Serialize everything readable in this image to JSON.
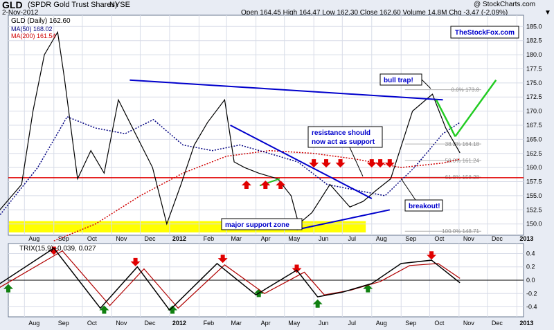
{
  "header": {
    "ticker": "GLD",
    "name": "(SPDR Gold Trust Shares)",
    "exchange": "NYSE",
    "date": "2-Nov-2012",
    "stats": "Open 164.45  High 164.47  Low 162.30  Close 162.60  Volume 14.8M  Chg -3.47 (-2.09%)",
    "watermark": "@ StockCharts.com",
    "down_arrow": "▼"
  },
  "chart_data": [
    {
      "type": "line",
      "title": "GLD (Daily) 162.60",
      "series": [
        {
          "name": "GLD (Daily) 162.60",
          "color": "#000000",
          "x": [
            "2011-07-01",
            "2011-07-29",
            "2011-08-10",
            "2011-08-22",
            "2011-09-05",
            "2011-09-12",
            "2011-09-26",
            "2011-10-10",
            "2011-10-24",
            "2011-11-08",
            "2011-11-20",
            "2011-12-14",
            "2011-12-29",
            "2012-01-13",
            "2012-01-27",
            "2012-02-10",
            "2012-02-28",
            "2012-03-09",
            "2012-03-20",
            "2012-04-04",
            "2012-04-24",
            "2012-05-08",
            "2012-05-16",
            "2012-05-30",
            "2012-06-18",
            "2012-07-09",
            "2012-07-23",
            "2012-08-06",
            "2012-08-21",
            "2012-09-13",
            "2012-10-04",
            "2012-10-18",
            "2012-11-02"
          ],
          "y": [
            151.5,
            157,
            170,
            180,
            184,
            176,
            158,
            163,
            159,
            172,
            168,
            160,
            150,
            157,
            164,
            168,
            172,
            161,
            160,
            159,
            158,
            155,
            150,
            152,
            157,
            153,
            154,
            156,
            158,
            170,
            173,
            167,
            162.6
          ]
        },
        {
          "name": "MA(50) 168.02",
          "color": "#000080",
          "x": [
            "2011-07-01",
            "2011-08-15",
            "2011-09-15",
            "2011-10-15",
            "2011-11-15",
            "2011-12-15",
            "2012-01-15",
            "2012-02-15",
            "2012-03-15",
            "2012-04-15",
            "2012-05-15",
            "2012-06-15",
            "2012-07-15",
            "2012-08-15",
            "2012-09-15",
            "2012-10-15",
            "2012-11-02"
          ],
          "y": [
            150.5,
            160,
            169,
            167,
            166,
            168.5,
            164,
            163,
            164,
            162.5,
            161,
            157,
            156,
            155,
            160,
            166,
            168
          ]
        },
        {
          "name": "MA(200) 161.54",
          "color": "#d00000",
          "x": [
            "2011-09-01",
            "2011-10-15",
            "2011-12-01",
            "2012-01-15",
            "2012-03-01",
            "2012-04-15",
            "2012-06-01",
            "2012-07-15",
            "2012-09-01",
            "2012-10-15",
            "2012-11-02"
          ],
          "y": [
            147,
            150,
            155,
            159,
            162,
            163,
            162.5,
            161.5,
            160,
            160.8,
            161.5
          ]
        }
      ],
      "ylim": [
        148,
        187
      ],
      "yticks": [
        "150.0",
        "152.5",
        "155.0",
        "157.5",
        "160.0",
        "162.5",
        "165.0",
        "167.5",
        "170.0",
        "172.5",
        "175.0",
        "177.5",
        "180.0",
        "182.5",
        "185.0"
      ],
      "xticks": [
        "Aug",
        "Sep",
        "Oct",
        "Nov",
        "Dec",
        "2012",
        "Feb",
        "Mar",
        "Apr",
        "May",
        "Jun",
        "Jul",
        "Aug",
        "Sep",
        "Oct",
        "Nov",
        "Dec",
        "2013"
      ],
      "fib_labels": [
        "0.0% 173.8",
        "38.2% 164.18",
        "50.0% 161.24",
        "61.8% 158.28",
        "100.0% 148.71"
      ],
      "annotations": [
        "bull trap!",
        "resistance should now act as support",
        "breakout!",
        "major support zone"
      ],
      "brand": "TheStockFox.com",
      "support_zone": [
        148.5,
        150.5
      ],
      "horizontal_line": 158.2
    },
    {
      "type": "line",
      "title": "TRIX(15,9) -0.039, 0.027",
      "series": [
        {
          "name": "TRIX(15,9)",
          "color": "#000000",
          "x": [
            "2011-07-01",
            "2011-09-01",
            "2011-10-20",
            "2011-11-28",
            "2012-01-01",
            "2012-02-20",
            "2012-04-01",
            "2012-05-14",
            "2012-06-05",
            "2012-07-01",
            "2012-08-01",
            "2012-09-01",
            "2012-10-03",
            "2012-11-02"
          ],
          "y": [
            -0.1,
            0.48,
            -0.42,
            0.2,
            -0.45,
            0.25,
            -0.22,
            0.15,
            -0.25,
            -0.18,
            -0.05,
            0.25,
            0.3,
            -0.039
          ]
        },
        {
          "name": "signal",
          "color": "#b00000",
          "x": [
            "2011-07-01",
            "2011-09-10",
            "2011-10-30",
            "2011-12-05",
            "2012-01-10",
            "2012-02-28",
            "2012-04-10",
            "2012-05-22",
            "2012-06-12",
            "2012-07-10",
            "2012-08-10",
            "2012-09-10",
            "2012-10-10",
            "2012-11-02"
          ],
          "y": [
            -0.15,
            0.44,
            -0.38,
            0.17,
            -0.42,
            0.23,
            -0.2,
            0.12,
            -0.22,
            -0.15,
            -0.02,
            0.22,
            0.25,
            0.027
          ]
        }
      ],
      "ylim": [
        -0.55,
        0.55
      ],
      "yticks": [
        "0.4",
        "0.2",
        "0.0",
        "-0.2",
        "-0.4"
      ],
      "xticks": [
        "Aug",
        "Sep",
        "Oct",
        "Nov",
        "Dec",
        "2012",
        "Feb",
        "Mar",
        "Apr",
        "May",
        "Jun",
        "Jul",
        "Aug",
        "Sep",
        "Oct",
        "Nov",
        "Dec",
        "2013"
      ]
    }
  ]
}
